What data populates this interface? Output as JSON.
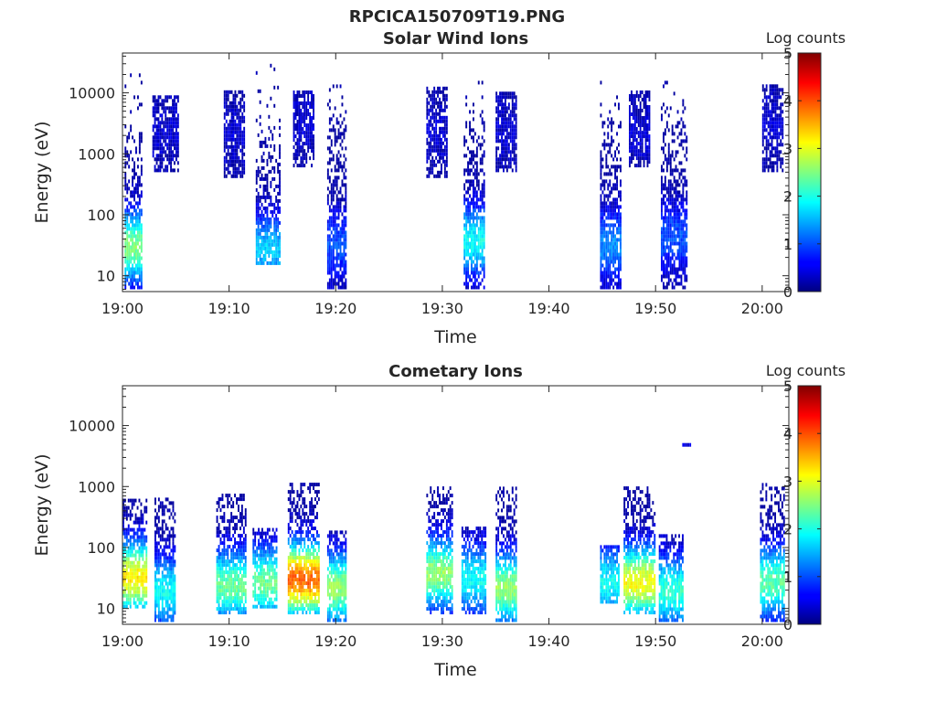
{
  "figure_title": "RPCICA150709T19.PNG",
  "colormap": "jet",
  "chart_data": [
    {
      "type": "heatmap",
      "title": "Solar Wind Ions",
      "xlabel": "Time",
      "ylabel": "Energy (eV)",
      "x_ticks": [
        "19:00",
        "19:10",
        "19:20",
        "19:30",
        "19:40",
        "19:50",
        "20:00"
      ],
      "x_tick_minutes": [
        0,
        10,
        20,
        30,
        40,
        50,
        60
      ],
      "xlim_minutes": [
        0,
        62.5
      ],
      "y_scale": "log",
      "ylim": [
        5.5,
        45000
      ],
      "y_ticks": [
        "10",
        "100",
        "1000",
        "10000"
      ],
      "y_tick_values": [
        10,
        100,
        1000,
        10000
      ],
      "colorbar": {
        "label": "Log counts",
        "range": [
          0,
          5
        ],
        "ticks": [
          "0",
          "1",
          "2",
          "3",
          "4",
          "5"
        ]
      },
      "bursts": [
        {
          "t_start": 0.2,
          "t_end": 1.8,
          "e_min": 6,
          "e_max": 25000,
          "peak_e": 28,
          "peak_level": 2.4
        },
        {
          "t_start": 2.8,
          "t_end": 5.2,
          "e_min": 500,
          "e_max": 9000,
          "peak_e": 2000,
          "peak_level": 0.3
        },
        {
          "t_start": 9.5,
          "t_end": 11.5,
          "e_min": 400,
          "e_max": 10000,
          "peak_e": 2000,
          "peak_level": 0.3
        },
        {
          "t_start": 12.5,
          "t_end": 14.8,
          "e_min": 15,
          "e_max": 35000,
          "peak_e": 25,
          "peak_level": 1.5
        },
        {
          "t_start": 16.0,
          "t_end": 18.0,
          "e_min": 600,
          "e_max": 10000,
          "peak_e": 3000,
          "peak_level": 0.3
        },
        {
          "t_start": 19.2,
          "t_end": 21.0,
          "e_min": 6,
          "e_max": 12000,
          "peak_e": 30,
          "peak_level": 0.9
        },
        {
          "t_start": 28.5,
          "t_end": 30.5,
          "e_min": 400,
          "e_max": 12000,
          "peak_e": 2000,
          "peak_level": 0.3
        },
        {
          "t_start": 32.0,
          "t_end": 34.0,
          "e_min": 6,
          "e_max": 15000,
          "peak_e": 35,
          "peak_level": 1.8
        },
        {
          "t_start": 35.0,
          "t_end": 37.0,
          "e_min": 500,
          "e_max": 10000,
          "peak_e": 2000,
          "peak_level": 0.3
        },
        {
          "t_start": 44.8,
          "t_end": 46.8,
          "e_min": 6,
          "e_max": 18000,
          "peak_e": 30,
          "peak_level": 1.2
        },
        {
          "t_start": 47.5,
          "t_end": 49.5,
          "e_min": 600,
          "e_max": 10000,
          "peak_e": 2000,
          "peak_level": 0.3
        },
        {
          "t_start": 50.5,
          "t_end": 53.0,
          "e_min": 6,
          "e_max": 15000,
          "peak_e": 40,
          "peak_level": 0.9
        },
        {
          "t_start": 60.0,
          "t_end": 62.0,
          "e_min": 500,
          "e_max": 12000,
          "peak_e": 3000,
          "peak_level": 0.3
        }
      ]
    },
    {
      "type": "heatmap",
      "title": "Cometary Ions",
      "xlabel": "Time",
      "ylabel": "Energy (eV)",
      "x_ticks": [
        "19:00",
        "19:10",
        "19:20",
        "19:30",
        "19:40",
        "19:50",
        "20:00"
      ],
      "x_tick_minutes": [
        0,
        10,
        20,
        30,
        40,
        50,
        60
      ],
      "xlim_minutes": [
        0,
        62.5
      ],
      "y_scale": "log",
      "ylim": [
        5.5,
        45000
      ],
      "y_ticks": [
        "10",
        "100",
        "1000",
        "10000"
      ],
      "y_tick_values": [
        10,
        100,
        1000,
        10000
      ],
      "colorbar": {
        "label": "Log counts",
        "range": [
          0,
          5
        ],
        "ticks": [
          "0",
          "1",
          "2",
          "3",
          "4",
          "5"
        ]
      },
      "bursts": [
        {
          "t_start": 0.0,
          "t_end": 2.2,
          "e_min": 10,
          "e_max": 600,
          "peak_e": 30,
          "peak_level": 3.1
        },
        {
          "t_start": 3.0,
          "t_end": 5.0,
          "e_min": 6,
          "e_max": 600,
          "peak_e": 18,
          "peak_level": 1.8
        },
        {
          "t_start": 8.8,
          "t_end": 11.5,
          "e_min": 8,
          "e_max": 700,
          "peak_e": 22,
          "peak_level": 2.3
        },
        {
          "t_start": 12.2,
          "t_end": 14.5,
          "e_min": 10,
          "e_max": 200,
          "peak_e": 25,
          "peak_level": 2.3
        },
        {
          "t_start": 15.5,
          "t_end": 18.5,
          "e_min": 8,
          "e_max": 1100,
          "peak_e": 28,
          "peak_level": 3.8
        },
        {
          "t_start": 19.2,
          "t_end": 21.0,
          "e_min": 6,
          "e_max": 180,
          "peak_e": 20,
          "peak_level": 2.5
        },
        {
          "t_start": 28.5,
          "t_end": 31.0,
          "e_min": 8,
          "e_max": 900,
          "peak_e": 35,
          "peak_level": 2.5
        },
        {
          "t_start": 31.8,
          "t_end": 34.0,
          "e_min": 8,
          "e_max": 200,
          "peak_e": 28,
          "peak_level": 1.8
        },
        {
          "t_start": 35.0,
          "t_end": 37.0,
          "e_min": 6,
          "e_max": 900,
          "peak_e": 20,
          "peak_level": 2.5
        },
        {
          "t_start": 44.8,
          "t_end": 46.5,
          "e_min": 12,
          "e_max": 100,
          "peak_e": 25,
          "peak_level": 1.8
        },
        {
          "t_start": 47.0,
          "t_end": 50.0,
          "e_min": 8,
          "e_max": 900,
          "peak_e": 25,
          "peak_level": 3.0
        },
        {
          "t_start": 50.3,
          "t_end": 52.5,
          "e_min": 6,
          "e_max": 150,
          "peak_e": 18,
          "peak_level": 2.0
        },
        {
          "t_start": 52.5,
          "t_end": 53.2,
          "e_min": 4500,
          "e_max": 4500,
          "peak_e": 4500,
          "peak_level": 0.3
        },
        {
          "t_start": 59.8,
          "t_end": 62.0,
          "e_min": 6,
          "e_max": 1000,
          "peak_e": 25,
          "peak_level": 2.2
        }
      ]
    }
  ]
}
